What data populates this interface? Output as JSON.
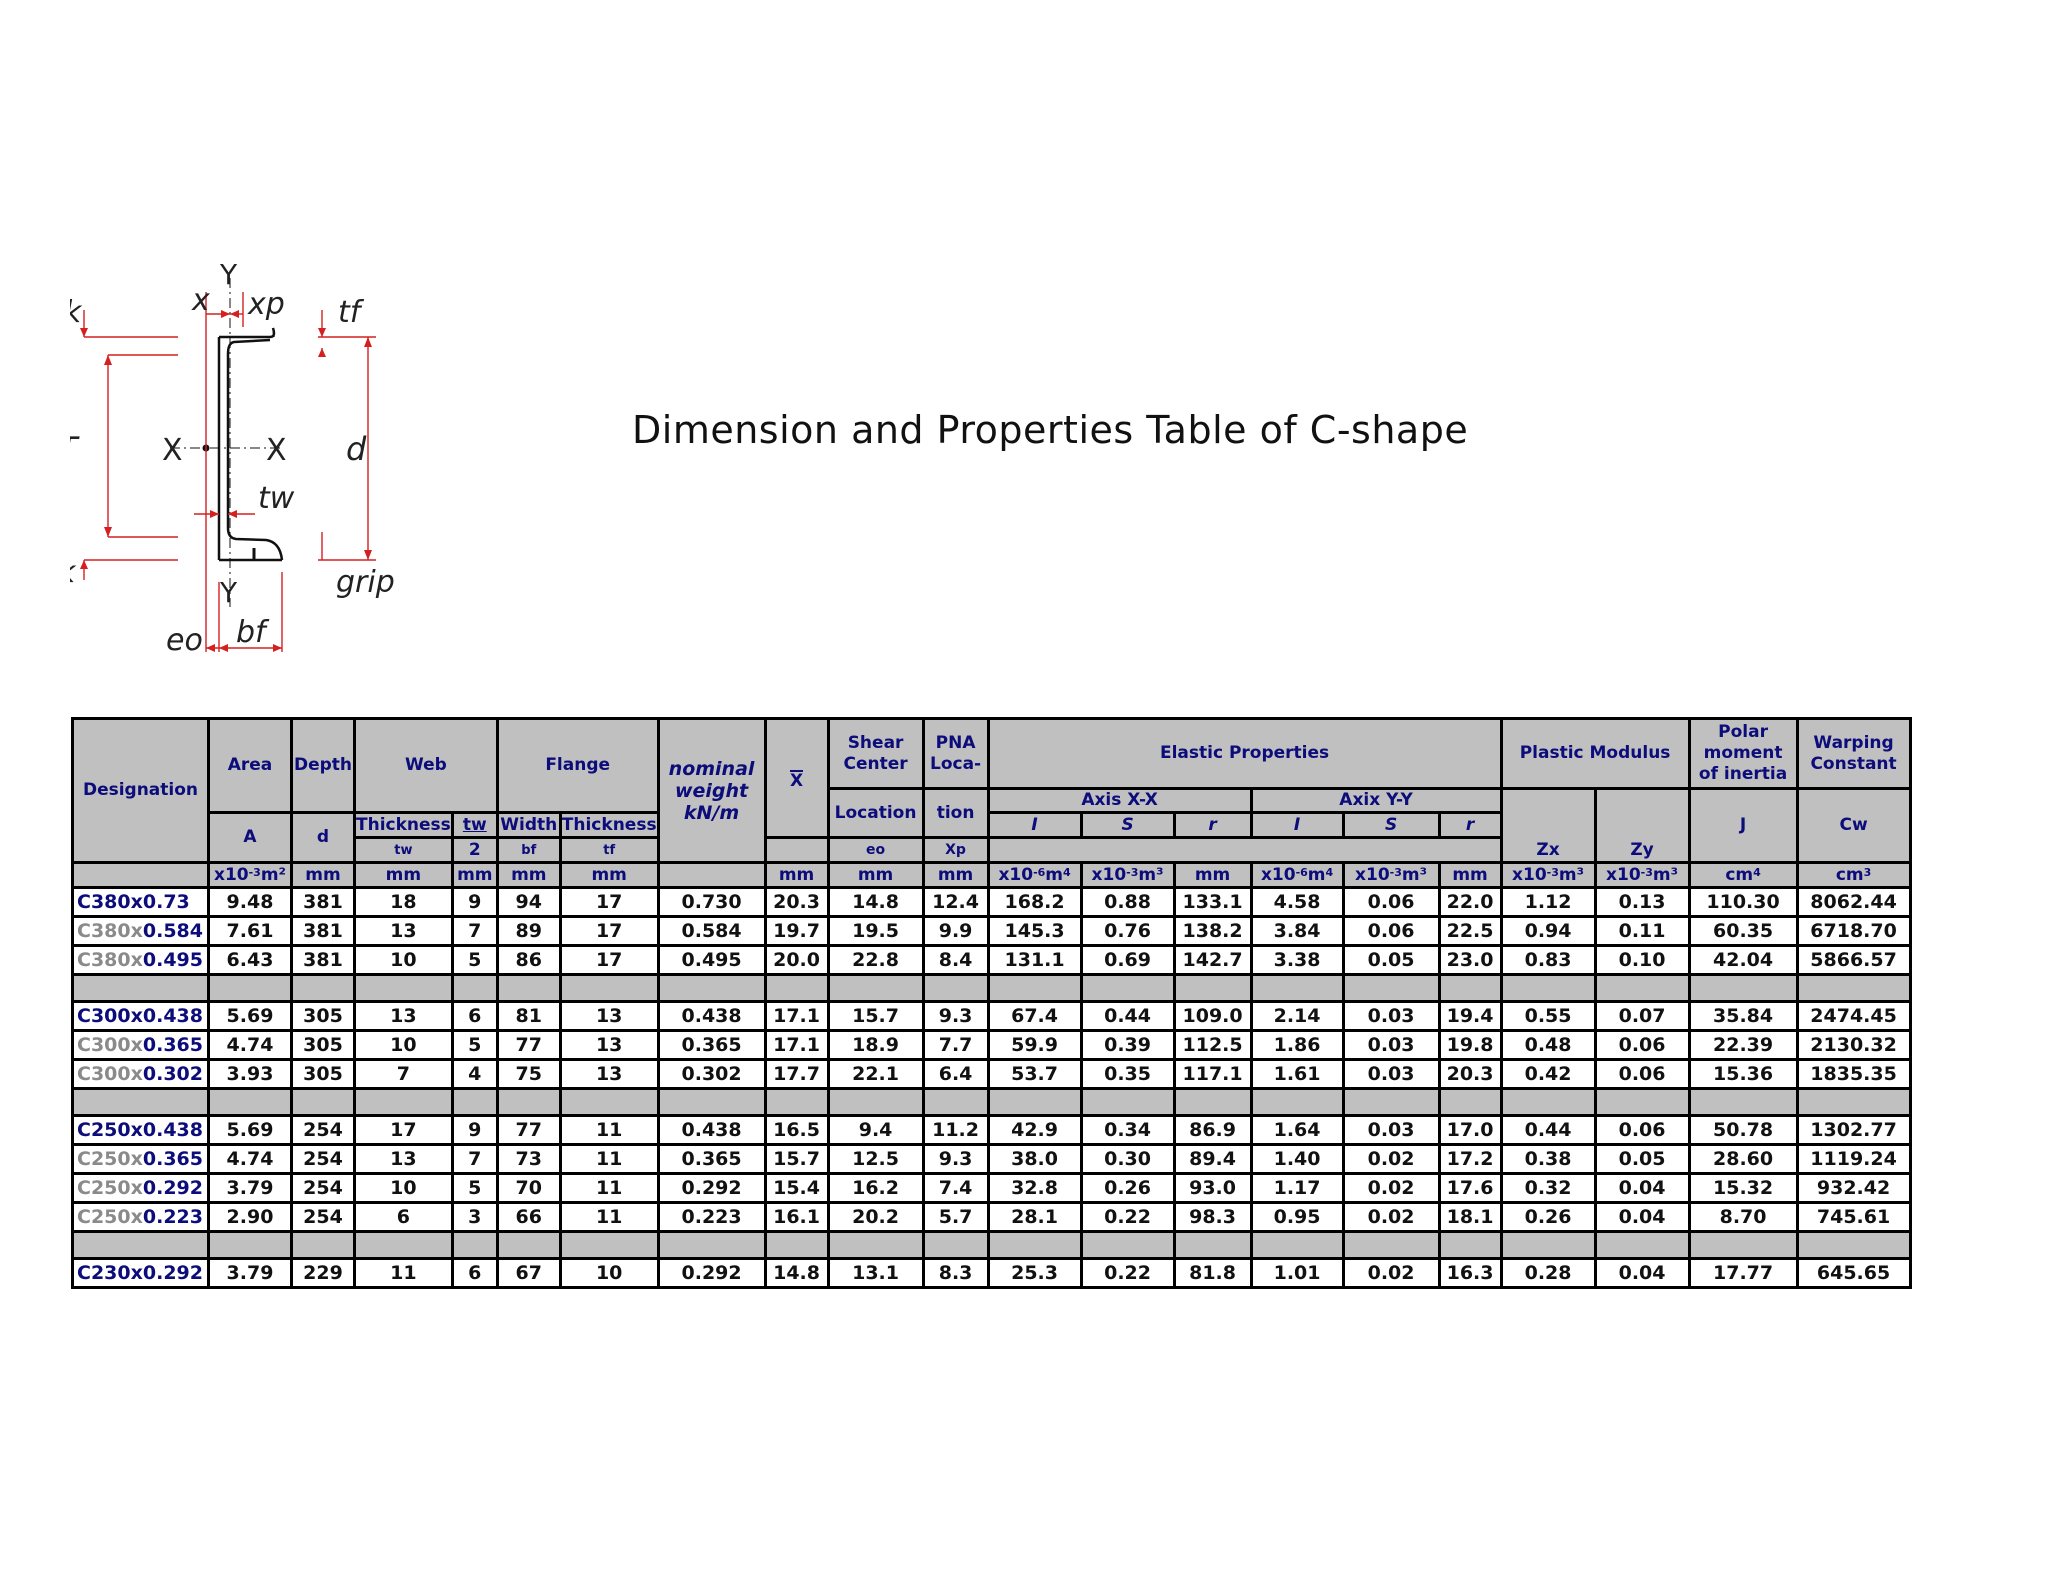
{
  "title": "Dimension and Properties Table of C-shape",
  "diagram": {
    "labels": {
      "k_top": "k",
      "x": "x",
      "y_top": "Y",
      "xp": "xp",
      "tf": "tf",
      "T": "T",
      "X_left": "X",
      "X_right": "X",
      "d": "d",
      "tw": "tw",
      "k_bottom": "k",
      "y_bottom": "Y",
      "grip": "grip",
      "eo": "eo",
      "bf": "bf"
    }
  },
  "table": {
    "headers": {
      "designation": "Designation",
      "area": "Area",
      "depth": "Depth",
      "web": "Web",
      "flange": "Flange",
      "nominal_weight": [
        "nominal",
        "weight",
        "kN/m"
      ],
      "xbar": "X",
      "shear_center": [
        "Shear",
        "Center"
      ],
      "shear_location": "Location",
      "pna": [
        "PNA",
        "Loca-"
      ],
      "pna_tion": "tion",
      "elastic": "Elastic Properties",
      "plastic": "Plastic Modulus",
      "polar": [
        "Polar",
        "moment",
        "of inertia"
      ],
      "warping": [
        "Warping",
        "Constant"
      ],
      "axis_xx": "Axis X-X",
      "axis_yy": "Axix Y-Y",
      "A": "A",
      "d": "d",
      "web_thickness": "Thickness",
      "tw_over": "tw",
      "tw_under": "2",
      "flange_width": "Width",
      "flange_thickness": "Thickness",
      "I": "I",
      "S": "S",
      "r": "r",
      "Zx": "Zx",
      "Zy": "Zy",
      "J": "J",
      "Cw": "Cw",
      "tw": "tw",
      "bf": "bf",
      "tf": "tf",
      "eo": "eo",
      "Xp": "Xp",
      "units": {
        "A": "x10-3m²",
        "d": "mm",
        "tw": "mm",
        "tw2": "mm",
        "bf": "mm",
        "tf": "mm",
        "xbar": "mm",
        "eo": "mm",
        "xp": "mm",
        "Ix": "x10-6m4",
        "Sx": "x10-3m³",
        "rx": "mm",
        "Iy": "x10-6m4",
        "Sy": "x10-3m³",
        "ry": "mm",
        "Zx": "x10-3m³",
        "Zy": "x10-3m³",
        "J": "cm4",
        "Cw": "cm3"
      }
    },
    "rows": [
      {
        "prefix": "C380x",
        "suffix": "0.73",
        "gray": false,
        "cells": [
          "9.48",
          "381",
          "18",
          "9",
          "94",
          "17",
          "0.730",
          "20.3",
          "14.8",
          "12.4",
          "168.2",
          "0.88",
          "133.1",
          "4.58",
          "0.06",
          "22.0",
          "1.12",
          "0.13",
          "110.30",
          "8062.44"
        ]
      },
      {
        "prefix": "C380x",
        "suffix": "0.584",
        "gray": true,
        "cells": [
          "7.61",
          "381",
          "13",
          "7",
          "89",
          "17",
          "0.584",
          "19.7",
          "19.5",
          "9.9",
          "145.3",
          "0.76",
          "138.2",
          "3.84",
          "0.06",
          "22.5",
          "0.94",
          "0.11",
          "60.35",
          "6718.70"
        ]
      },
      {
        "prefix": "C380x",
        "suffix": "0.495",
        "gray": true,
        "cells": [
          "6.43",
          "381",
          "10",
          "5",
          "86",
          "17",
          "0.495",
          "20.0",
          "22.8",
          "8.4",
          "131.1",
          "0.69",
          "142.7",
          "3.38",
          "0.05",
          "23.0",
          "0.83",
          "0.10",
          "42.04",
          "5866.57"
        ]
      },
      {
        "blank": true
      },
      {
        "prefix": "C300x",
        "suffix": "0.438",
        "gray": false,
        "cells": [
          "5.69",
          "305",
          "13",
          "6",
          "81",
          "13",
          "0.438",
          "17.1",
          "15.7",
          "9.3",
          "67.4",
          "0.44",
          "109.0",
          "2.14",
          "0.03",
          "19.4",
          "0.55",
          "0.07",
          "35.84",
          "2474.45"
        ]
      },
      {
        "prefix": "C300x",
        "suffix": "0.365",
        "gray": true,
        "cells": [
          "4.74",
          "305",
          "10",
          "5",
          "77",
          "13",
          "0.365",
          "17.1",
          "18.9",
          "7.7",
          "59.9",
          "0.39",
          "112.5",
          "1.86",
          "0.03",
          "19.8",
          "0.48",
          "0.06",
          "22.39",
          "2130.32"
        ]
      },
      {
        "prefix": "C300x",
        "suffix": "0.302",
        "gray": true,
        "cells": [
          "3.93",
          "305",
          "7",
          "4",
          "75",
          "13",
          "0.302",
          "17.7",
          "22.1",
          "6.4",
          "53.7",
          "0.35",
          "117.1",
          "1.61",
          "0.03",
          "20.3",
          "0.42",
          "0.06",
          "15.36",
          "1835.35"
        ]
      },
      {
        "blank": true
      },
      {
        "prefix": "C250x",
        "suffix": "0.438",
        "gray": false,
        "cells": [
          "5.69",
          "254",
          "17",
          "9",
          "77",
          "11",
          "0.438",
          "16.5",
          "9.4",
          "11.2",
          "42.9",
          "0.34",
          "86.9",
          "1.64",
          "0.03",
          "17.0",
          "0.44",
          "0.06",
          "50.78",
          "1302.77"
        ]
      },
      {
        "prefix": "C250x",
        "suffix": "0.365",
        "gray": true,
        "cells": [
          "4.74",
          "254",
          "13",
          "7",
          "73",
          "11",
          "0.365",
          "15.7",
          "12.5",
          "9.3",
          "38.0",
          "0.30",
          "89.4",
          "1.40",
          "0.02",
          "17.2",
          "0.38",
          "0.05",
          "28.60",
          "1119.24"
        ]
      },
      {
        "prefix": "C250x",
        "suffix": "0.292",
        "gray": true,
        "cells": [
          "3.79",
          "254",
          "10",
          "5",
          "70",
          "11",
          "0.292",
          "15.4",
          "16.2",
          "7.4",
          "32.8",
          "0.26",
          "93.0",
          "1.17",
          "0.02",
          "17.6",
          "0.32",
          "0.04",
          "15.32",
          "932.42"
        ]
      },
      {
        "prefix": "C250x",
        "suffix": "0.223",
        "gray": true,
        "cells": [
          "2.90",
          "254",
          "6",
          "3",
          "66",
          "11",
          "0.223",
          "16.1",
          "20.2",
          "5.7",
          "28.1",
          "0.22",
          "98.3",
          "0.95",
          "0.02",
          "18.1",
          "0.26",
          "0.04",
          "8.70",
          "745.61"
        ]
      },
      {
        "blank": true
      },
      {
        "prefix": "C230x",
        "suffix": "0.292",
        "gray": false,
        "cells": [
          "3.79",
          "229",
          "11",
          "6",
          "67",
          "10",
          "0.292",
          "14.8",
          "13.1",
          "8.3",
          "25.3",
          "0.22",
          "81.8",
          "1.01",
          "0.02",
          "16.3",
          "0.28",
          "0.04",
          "17.77",
          "645.65"
        ]
      }
    ]
  },
  "colors": {
    "header_bg": "#c0c0c0",
    "header_text": "#0c0c7a",
    "designation_text": "#0c0c7a",
    "designation_gray": "#8a8a8a",
    "diagram_red": "#d42020"
  }
}
